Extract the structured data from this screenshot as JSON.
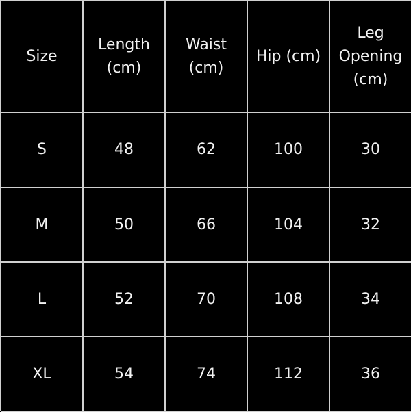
{
  "table": {
    "headers": [
      "Size",
      "Length\n(cm)",
      "Waist\n(cm)",
      "Hip (cm)",
      "Leg\nOpening\n(cm)"
    ],
    "rows": [
      [
        "S",
        "48",
        "62",
        "100",
        "30"
      ],
      [
        "M",
        "50",
        "66",
        "104",
        "32"
      ],
      [
        "L",
        "52",
        "70",
        "108",
        "34"
      ],
      [
        "XL",
        "54",
        "74",
        "112",
        "36"
      ]
    ]
  },
  "colors": {
    "background": "#000000",
    "text": "#f2f2f2",
    "grid": "#d0d0d0"
  }
}
